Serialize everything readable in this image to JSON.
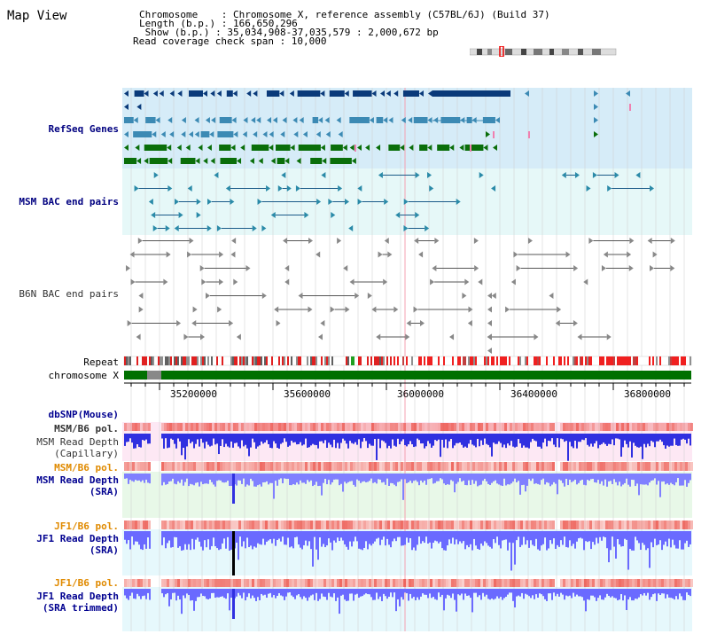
{
  "title": "Map View",
  "header": {
    "lines": [
      "Chromosome    : Chromosome X, reference assembly (C57BL/6J) (Build 37)",
      "Length (b.p.) : 166,650,296",
      " Show (b.p.) : 35,034,908-37,035,579 : 2,000,672 bp",
      "Read coverage check span : 10,000"
    ]
  },
  "tracks": {
    "refseq": "RefSeq Genes",
    "msm_bac": "MSM BAC end pairs",
    "b6n_bac": "B6N BAC end pairs",
    "repeat": "Repeat",
    "chromosome": "chromosome X",
    "dbsnp": "dbSNP(Mouse)",
    "msm_b6_pol_1": "MSM/B6 pol.",
    "msm_depth_cap_1": "MSM Read Depth",
    "msm_depth_cap_2": "(Capillary)",
    "msm_b6_pol_2": "MSM/B6 pol.",
    "msm_depth_sra_1": "MSM Read Depth",
    "msm_depth_sra_2": "(SRA)",
    "jf1_pol_1": "JF1/B6 pol.",
    "jf1_depth_1": "JF1 Read Depth",
    "jf1_depth_2": "(SRA)",
    "jf1_pol_2": "JF1/B6 pol.",
    "jf1_trim_1": "JF1 Read Depth",
    "jf1_trim_2": "(SRA trimmed)"
  },
  "axis": {
    "ticks": [
      "35200000",
      "35600000",
      "36000000",
      "36400000",
      "36800000"
    ]
  },
  "colors": {
    "refseq_bg": "#d6ecf8",
    "bac_bg": "#e6f8f8",
    "gene_dark": "#0a3a7a",
    "gene_mid": "#3c8ab4",
    "gene_green": "#0a6e0a",
    "chrom": "#007000",
    "depth_blue": "#3030e0",
    "depth_light": "#8080ff"
  }
}
